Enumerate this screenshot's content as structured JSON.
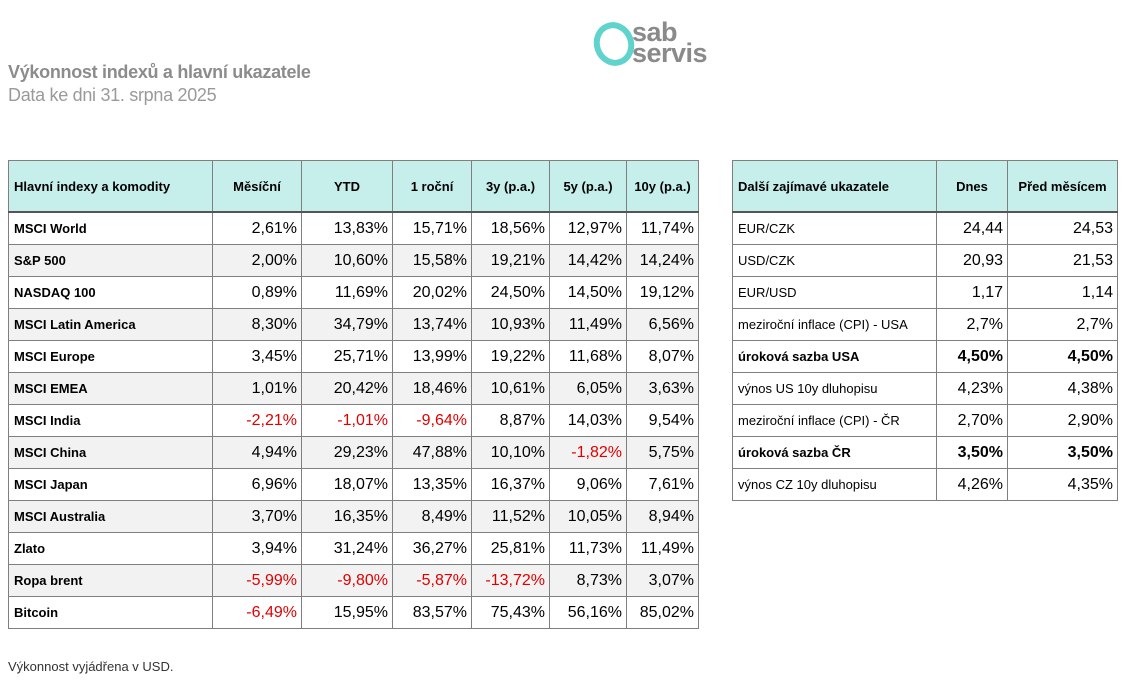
{
  "header": {
    "title": "Výkonnost indexů a hlavní ukazatele",
    "subtitle": "Data ke dni 31. srpna 2025"
  },
  "logo": {
    "line1": "sab",
    "line2": "servis",
    "accent": "#5fd3cc"
  },
  "indices_table": {
    "columns": [
      "Hlavní indexy a komodity",
      "Měsíční",
      "YTD",
      "1 roční",
      "3y (p.a.)",
      "5y (p.a.)",
      "10y (p.a.)"
    ],
    "rows": [
      {
        "name": "MSCI World",
        "values": [
          "2,61%",
          "13,83%",
          "15,71%",
          "18,56%",
          "12,97%",
          "11,74%"
        ]
      },
      {
        "name": "S&P 500",
        "values": [
          "2,00%",
          "10,60%",
          "15,58%",
          "19,21%",
          "14,42%",
          "14,24%"
        ]
      },
      {
        "name": "NASDAQ 100",
        "values": [
          "0,89%",
          "11,69%",
          "20,02%",
          "24,50%",
          "14,50%",
          "19,12%"
        ]
      },
      {
        "name": "MSCI Latin America",
        "values": [
          "8,30%",
          "34,79%",
          "13,74%",
          "10,93%",
          "11,49%",
          "6,56%"
        ]
      },
      {
        "name": "MSCI Europe",
        "values": [
          "3,45%",
          "25,71%",
          "13,99%",
          "19,22%",
          "11,68%",
          "8,07%"
        ]
      },
      {
        "name": "MSCI EMEA",
        "values": [
          "1,01%",
          "20,42%",
          "18,46%",
          "10,61%",
          "6,05%",
          "3,63%"
        ]
      },
      {
        "name": "MSCI India",
        "values": [
          "-2,21%",
          "-1,01%",
          "-9,64%",
          "8,87%",
          "14,03%",
          "9,54%"
        ]
      },
      {
        "name": "MSCI China",
        "values": [
          "4,94%",
          "29,23%",
          "47,88%",
          "10,10%",
          "-1,82%",
          "5,75%"
        ]
      },
      {
        "name": "MSCI Japan",
        "values": [
          "6,96%",
          "18,07%",
          "13,35%",
          "16,37%",
          "9,06%",
          "7,61%"
        ]
      },
      {
        "name": "MSCI Australia",
        "values": [
          "3,70%",
          "16,35%",
          "8,49%",
          "11,52%",
          "10,05%",
          "8,94%"
        ]
      },
      {
        "name": "Zlato",
        "values": [
          "3,94%",
          "31,24%",
          "36,27%",
          "25,81%",
          "11,73%",
          "11,49%"
        ]
      },
      {
        "name": "Ropa brent",
        "values": [
          "-5,99%",
          "-9,80%",
          "-5,87%",
          "-13,72%",
          "8,73%",
          "3,07%"
        ]
      },
      {
        "name": "Bitcoin",
        "values": [
          "-6,49%",
          "15,95%",
          "83,57%",
          "75,43%",
          "56,16%",
          "85,02%"
        ]
      }
    ]
  },
  "indicators_table": {
    "columns": [
      "Další zajímavé ukazatele",
      "Dnes",
      "Před měsícem"
    ],
    "rows": [
      {
        "name": "EUR/CZK",
        "values": [
          "24,44",
          "24,53"
        ],
        "bold": false
      },
      {
        "name": "USD/CZK",
        "values": [
          "20,93",
          "21,53"
        ],
        "bold": false
      },
      {
        "name": "EUR/USD",
        "values": [
          "1,17",
          "1,14"
        ],
        "bold": false
      },
      {
        "name": "meziroční inflace (CPI) - USA",
        "values": [
          "2,7%",
          "2,7%"
        ],
        "bold": false
      },
      {
        "name": "úroková sazba USA",
        "values": [
          "4,50%",
          "4,50%"
        ],
        "bold": true
      },
      {
        "name": "výnos US 10y dluhopisu",
        "values": [
          "4,23%",
          "4,38%"
        ],
        "bold": false
      },
      {
        "name": "meziroční inflace (CPI) - ČR",
        "values": [
          "2,70%",
          "2,90%"
        ],
        "bold": false
      },
      {
        "name": "úroková sazba ČR",
        "values": [
          "3,50%",
          "3,50%"
        ],
        "bold": true
      },
      {
        "name": "výnos CZ 10y dluhopisu",
        "values": [
          "4,26%",
          "4,35%"
        ],
        "bold": false
      }
    ]
  },
  "colors": {
    "header_bg": "#c6efec",
    "negative": "#e00000",
    "alt_row": "#f2f2f2"
  },
  "footnote": "Výkonnost vyjádřena v USD."
}
